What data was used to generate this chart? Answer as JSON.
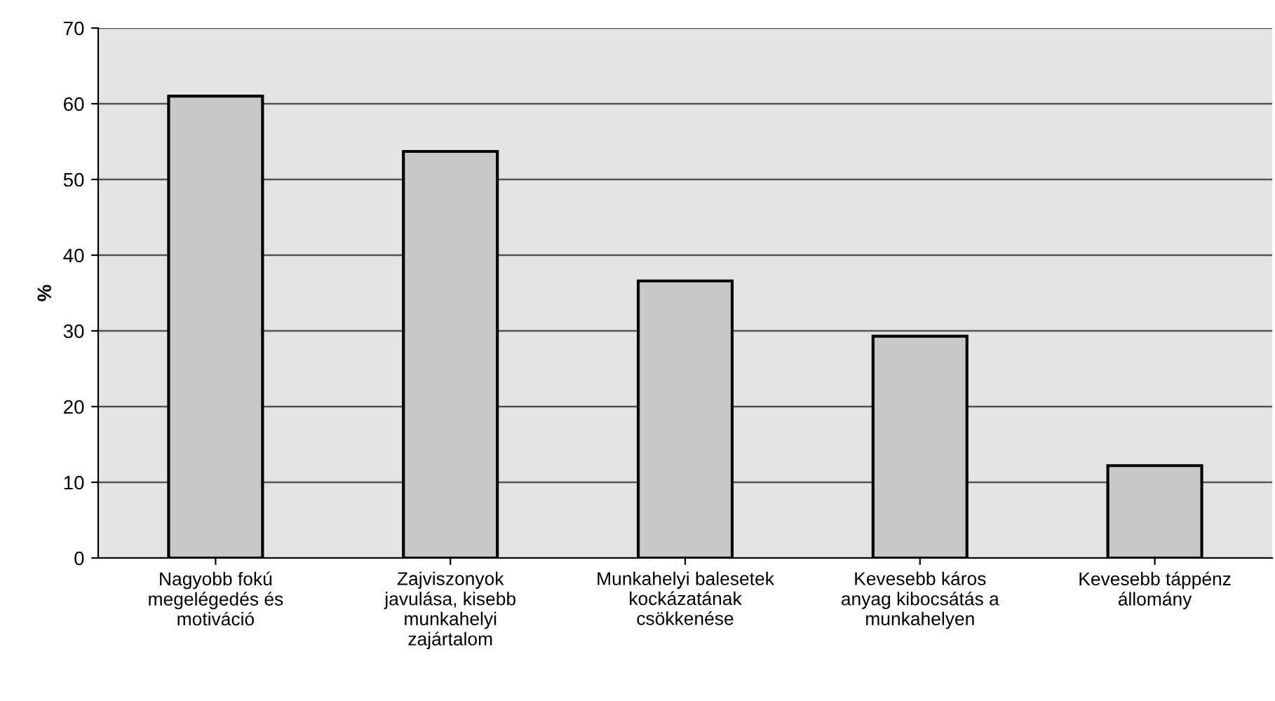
{
  "chart_data": {
    "type": "bar",
    "ylabel": "%",
    "categories": [
      "Nagyobb fokú\nmegelégedés és\nmotiváció",
      "Zajviszonyok\njavulása, kisebb\nmunkahelyi\nzajártalom",
      "Munkahelyi balesetek\nkockázatának\ncsökkenése",
      "Kevesebb káros\nanyag kibocsátás a\nmunkahelyen",
      "Kevesebb táppénz\nállomány"
    ],
    "values": [
      61,
      53.7,
      36.6,
      29.3,
      12.2
    ],
    "color": "#c8c8c8",
    "ylim": [
      0,
      70
    ],
    "yticks": [
      0,
      10,
      20,
      30,
      40,
      50,
      60,
      70
    ],
    "grid": "y"
  }
}
